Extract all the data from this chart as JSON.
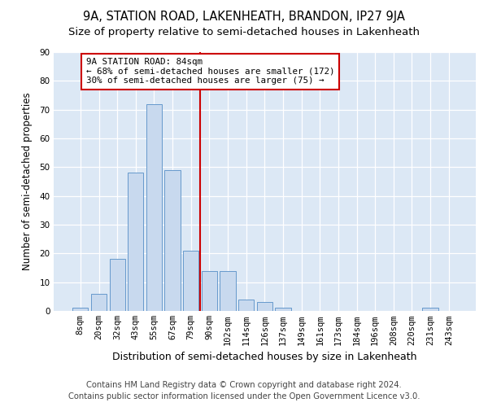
{
  "title": "9A, STATION ROAD, LAKENHEATH, BRANDON, IP27 9JA",
  "subtitle": "Size of property relative to semi-detached houses in Lakenheath",
  "xlabel": "Distribution of semi-detached houses by size in Lakenheath",
  "ylabel": "Number of semi-detached properties",
  "bar_labels": [
    "8sqm",
    "20sqm",
    "32sqm",
    "43sqm",
    "55sqm",
    "67sqm",
    "79sqm",
    "90sqm",
    "102sqm",
    "114sqm",
    "126sqm",
    "137sqm",
    "149sqm",
    "161sqm",
    "173sqm",
    "184sqm",
    "196sqm",
    "208sqm",
    "220sqm",
    "231sqm",
    "243sqm"
  ],
  "bar_values": [
    1,
    6,
    18,
    48,
    72,
    49,
    21,
    14,
    14,
    4,
    3,
    1,
    0,
    0,
    0,
    0,
    0,
    0,
    0,
    1,
    0
  ],
  "bar_color": "#c8d9ee",
  "bar_edge_color": "#6699cc",
  "vline_color": "#cc0000",
  "annotation_title": "9A STATION ROAD: 84sqm",
  "annotation_line1": "← 68% of semi-detached houses are smaller (172)",
  "annotation_line2": "30% of semi-detached houses are larger (75) →",
  "annotation_box_color": "#cc0000",
  "footer1": "Contains HM Land Registry data © Crown copyright and database right 2024.",
  "footer2": "Contains public sector information licensed under the Open Government Licence v3.0.",
  "ylim": [
    0,
    90
  ],
  "yticks": [
    0,
    10,
    20,
    30,
    40,
    50,
    60,
    70,
    80,
    90
  ],
  "bg_color": "#dce8f5",
  "title_fontsize": 10.5,
  "subtitle_fontsize": 9.5,
  "footer_fontsize": 7.2,
  "ylabel_fontsize": 8.5,
  "xlabel_fontsize": 9,
  "tick_fontsize": 7.5,
  "annotation_fontsize": 7.8
}
